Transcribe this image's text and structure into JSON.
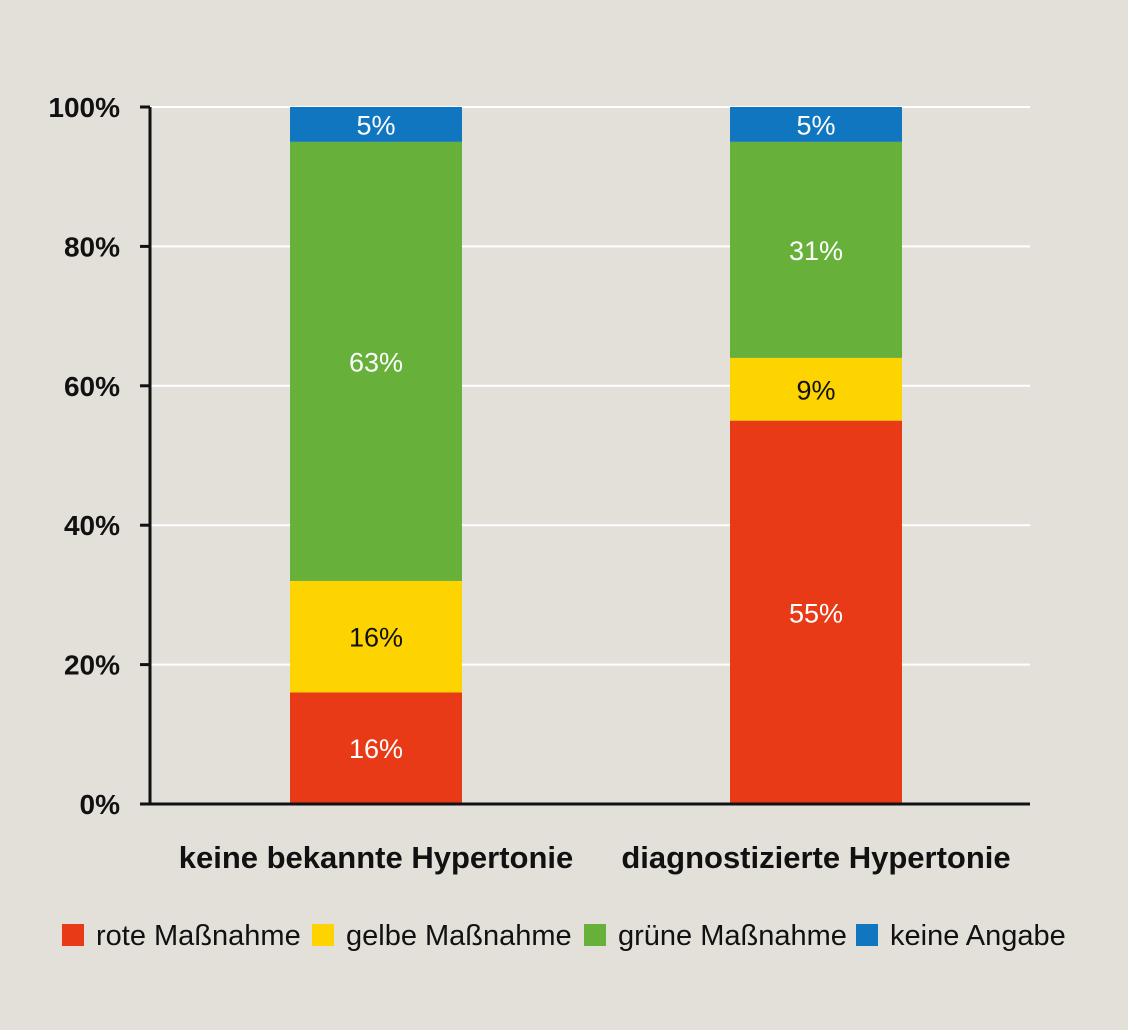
{
  "chart_data": {
    "type": "bar",
    "stacked": true,
    "categories": [
      "keine bekannte Hypertonie",
      "diagnostizierte Hypertonie"
    ],
    "series": [
      {
        "name": "rote Maßnahme",
        "color": "#e93a17",
        "label_color": "#ffffff",
        "values": [
          16,
          55
        ],
        "labels": [
          "16%",
          "55%"
        ]
      },
      {
        "name": "gelbe Maßnahme",
        "color": "#fdd400",
        "label_color": "#111111",
        "values": [
          16,
          9
        ],
        "labels": [
          "16%",
          "9%"
        ]
      },
      {
        "name": "grüne Maßnahme",
        "color": "#67b13b",
        "label_color": "#ffffff",
        "values": [
          63,
          31
        ],
        "labels": [
          "63%",
          "31%"
        ]
      },
      {
        "name": "keine Angabe",
        "color": "#0f76bf",
        "label_color": "#ffffff",
        "values": [
          5,
          5
        ],
        "labels": [
          "5%",
          "5%"
        ]
      }
    ],
    "ylim": [
      0,
      100
    ],
    "yticks": [
      0,
      20,
      40,
      60,
      80,
      100
    ],
    "ytick_labels": [
      "0%",
      "20%",
      "40%",
      "60%",
      "80%",
      "100%"
    ],
    "grid": true,
    "legend_position": "bottom"
  }
}
